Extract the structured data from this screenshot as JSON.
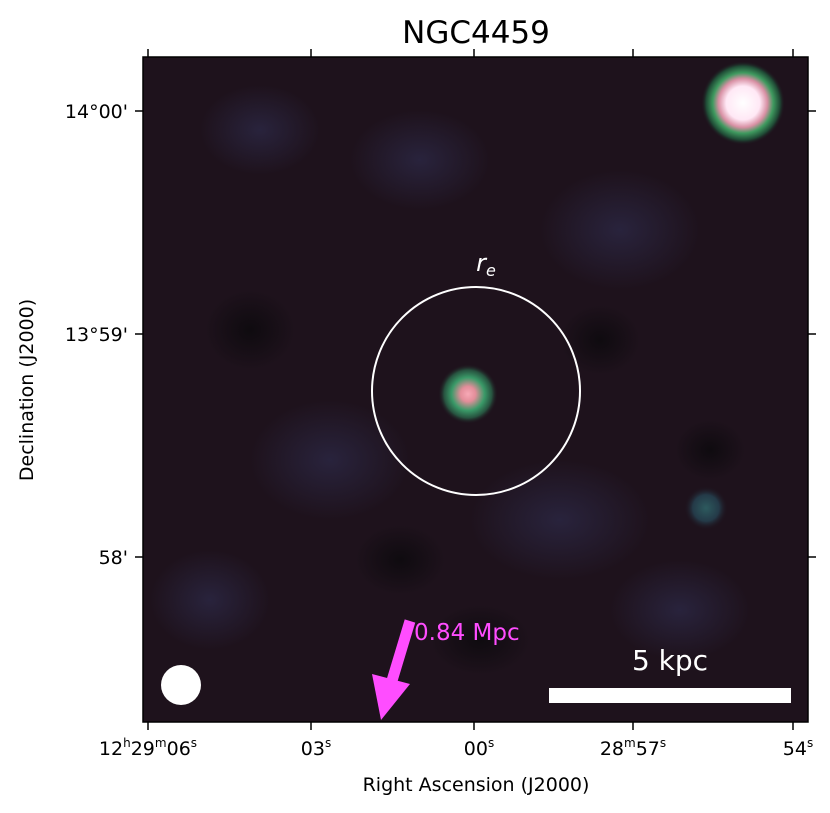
{
  "title": "NGC4459",
  "x_axis": {
    "label": "Right Ascension (J2000)",
    "ticks": [
      {
        "main": "12",
        "u1": "h",
        "m": "29",
        "u2": "m",
        "s": "06",
        "u3": "s"
      },
      {
        "s": "03",
        "u3": "s"
      },
      {
        "s": "00",
        "u3": "s"
      },
      {
        "m": "28",
        "u2": "m",
        "s": "57",
        "u3": "s"
      },
      {
        "s": "54",
        "u3": "s"
      }
    ]
  },
  "y_axis": {
    "label": "Declination (J2000)",
    "ticks": [
      "14°00'",
      "13°59'",
      "58'"
    ]
  },
  "annotations": {
    "aperture_label": "r",
    "aperture_subscript": "e",
    "arrow_label": "0.84 Mpc",
    "scalebar_label": "5 kpc"
  },
  "colors": {
    "background": "#1e121c",
    "arrow": "#ff4dff",
    "aperture": "#ffffff",
    "scalebar": "#ffffff"
  },
  "sources": [
    {
      "name": "central-source",
      "peak": "pink",
      "halo": "green"
    },
    {
      "name": "corner-source",
      "peak": "white",
      "halo": "green"
    },
    {
      "name": "faint-source",
      "peak": "teal"
    }
  ]
}
